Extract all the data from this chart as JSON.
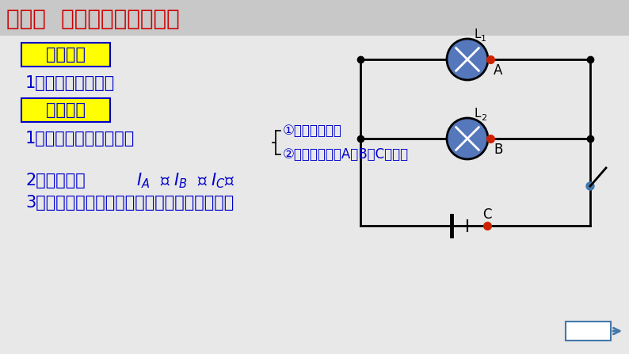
{
  "bg_color": "#e8e8e8",
  "title_text": "探究二  并联电路电流的规律",
  "title_color": "#cc0000",
  "title_fontsize": 20,
  "box1_text": "设计实验",
  "box2_text": "进行实验",
  "box_bg": "#ffff00",
  "box_edge": "#0000cc",
  "text_color": "#0000cc",
  "body_fontsize": 15,
  "small_fontsize": 12,
  "circuit_color": "#000000",
  "bulb_fill": "#5577bb",
  "dot_color": "#cc2200",
  "switch_color": "#4477aa",
  "label_color": "#111111",
  "btn_color": "#4477aa"
}
